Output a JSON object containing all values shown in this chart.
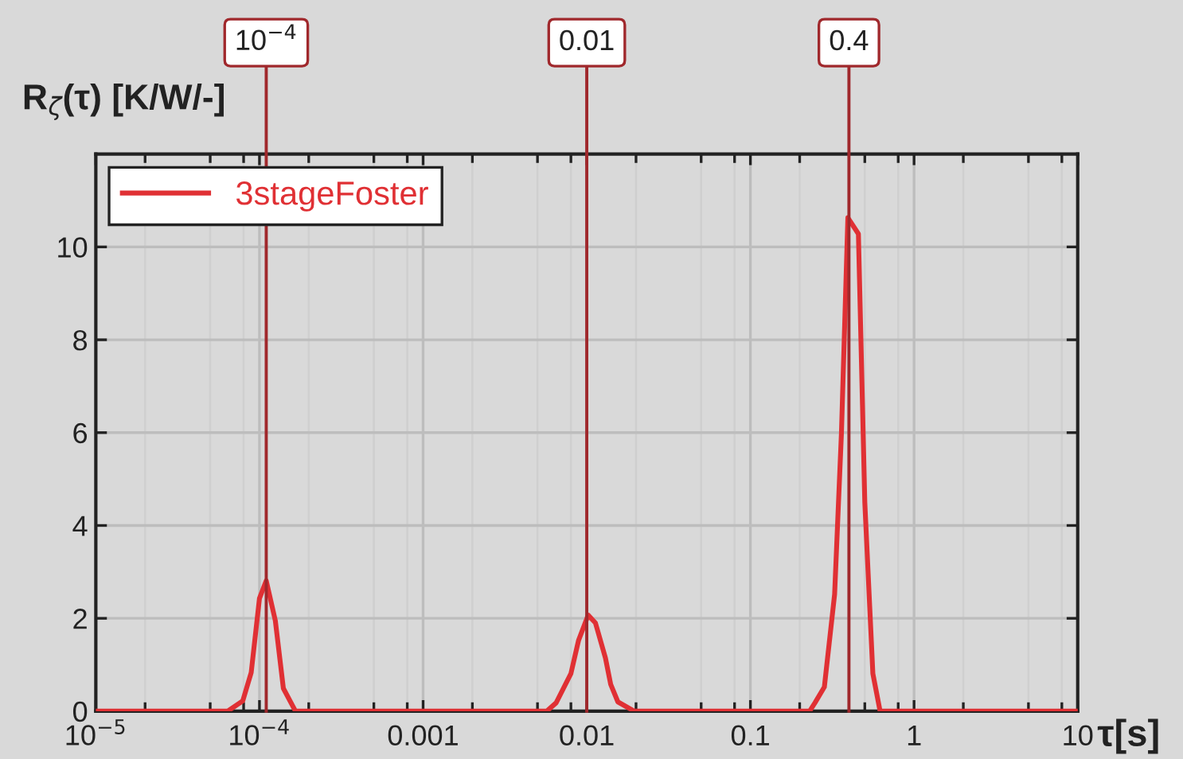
{
  "chart_data": {
    "type": "line",
    "xlabel": "τ[s]",
    "ylabel": "R$_{ζ}$(τ) [K/W/-]",
    "log": "x",
    "grid": true,
    "legend": "top left",
    "marker": "none",
    "line_style": "solid",
    "xlim": [
      1e-05,
      10
    ],
    "ylim": [
      0,
      12
    ],
    "xticks": [
      {
        "value": 1e-05,
        "label": "10$^{−5}$"
      },
      {
        "value": 2e-05,
        "label": null
      },
      {
        "value": 5e-05,
        "label": null
      },
      {
        "value": 8e-05,
        "label": null
      },
      {
        "value": 0.0001,
        "label": "10$^{−4}$"
      },
      {
        "value": 0.0002,
        "label": null
      },
      {
        "value": 0.0005,
        "label": null
      },
      {
        "value": 0.0008,
        "label": null
      },
      {
        "value": 0.001,
        "label": "0.001"
      },
      {
        "value": 0.002,
        "label": null
      },
      {
        "value": 0.005,
        "label": null
      },
      {
        "value": 0.008,
        "label": null
      },
      {
        "value": 0.01,
        "label": "0.01"
      },
      {
        "value": 0.02,
        "label": null
      },
      {
        "value": 0.05,
        "label": null
      },
      {
        "value": 0.08,
        "label": null
      },
      {
        "value": 0.1,
        "label": "0.1"
      },
      {
        "value": 0.2,
        "label": null
      },
      {
        "value": 0.5,
        "label": null
      },
      {
        "value": 0.8,
        "label": null
      },
      1,
      {
        "value": 2,
        "label": null
      },
      {
        "value": 5,
        "label": null
      },
      {
        "value": 8,
        "label": null
      },
      10
    ],
    "yticks": [
      0,
      2,
      4,
      6,
      8,
      10
    ],
    "series": [
      {
        "name": "3stageFoster",
        "color": "#e03034",
        "x": [
          1e-05,
          6.4e-05,
          7.9e-05,
          8.9e-05,
          0.0001,
          0.00011,
          0.000125,
          0.00014,
          0.000166,
          0.0057,
          0.0065,
          0.008,
          0.0089,
          0.0102,
          0.0113,
          0.013,
          0.014,
          0.0155,
          0.0195,
          0.23,
          0.248,
          0.283,
          0.327,
          0.36,
          0.394,
          0.457,
          0.5,
          0.56,
          0.62,
          0.67,
          10
        ],
        "values": [
          0,
          0,
          0.22,
          0.83,
          2.43,
          2.81,
          1.95,
          0.49,
          0,
          0,
          0.18,
          0.81,
          1.52,
          2.07,
          1.9,
          1.15,
          0.58,
          0.2,
          0,
          0,
          0.18,
          0.52,
          2.52,
          6.0,
          10.63,
          10.28,
          4.5,
          0.81,
          0,
          0,
          0
        ]
      }
    ],
    "ref_lines": [
      {
        "axis": "x",
        "value": 0.00011,
        "label": "10$^{−4}$",
        "color": "#a0282c"
      },
      {
        "axis": "x",
        "value": 0.01,
        "label": "0.01",
        "color": "#a0282c"
      },
      {
        "axis": "x",
        "value": 0.4,
        "label": "0.4",
        "color": "#a0282c"
      }
    ]
  }
}
